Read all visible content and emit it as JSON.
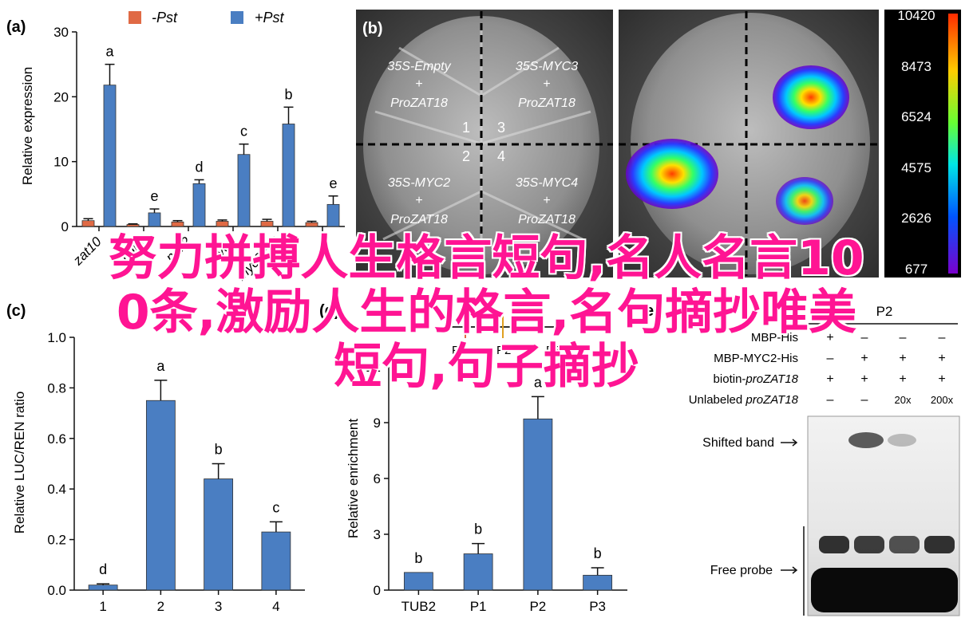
{
  "overlay_title": {
    "line1": "努力拼搏人生格言短句,名人名言10",
    "line2": "0条,激励人生的格言,名句摘抄唯美",
    "line3": "短句,句子摘抄"
  },
  "panels": {
    "a": "(a)",
    "b": "(b)",
    "c": "(c)",
    "d": "(d)",
    "e": "e"
  },
  "colors": {
    "neg": "#e06a45",
    "pos": "#4a7ec2",
    "bar": "#4a7ec2"
  },
  "chart_data": [
    {
      "id": "a",
      "type": "bar",
      "ylabel": "Relative expression",
      "ylim": [
        0,
        30
      ],
      "yticks": [
        "0",
        "10",
        "20",
        "30"
      ],
      "legend": [
        "-Pst",
        "+Pst"
      ],
      "categories": [
        "zat10",
        "zat11",
        "zat12",
        "myc3",
        "myc2",
        "myc4"
      ],
      "xtick_labels": [
        "zat10",
        "nail1",
        "nail2",
        "myc3",
        "myc2/5/4",
        ""
      ],
      "series": [
        {
          "name": "-Pst",
          "values": [
            0.9,
            0.3,
            0.7,
            0.8,
            0.8,
            0.6
          ],
          "errors": [
            0.3,
            0.1,
            0.2,
            0.2,
            0.3,
            0.2
          ]
        },
        {
          "name": "+Pst",
          "values": [
            21.8,
            2.1,
            6.6,
            11.1,
            15.8,
            3.4
          ],
          "errors": [
            3.2,
            0.6,
            0.6,
            1.6,
            2.6,
            1.3
          ]
        }
      ],
      "letters": [
        "a",
        "e",
        "d",
        "c",
        "b",
        "e"
      ]
    },
    {
      "id": "c",
      "type": "bar",
      "ylabel": "Relative LUC/REN ratio",
      "ylim": [
        0,
        1.0
      ],
      "yticks": [
        "0.0",
        "0.2",
        "0.4",
        "0.6",
        "0.8",
        "1.0"
      ],
      "categories": [
        "1",
        "2",
        "3",
        "4"
      ],
      "values": [
        0.02,
        0.75,
        0.44,
        0.23
      ],
      "errors": [
        0.005,
        0.08,
        0.06,
        0.04
      ],
      "letters": [
        "d",
        "a",
        "b",
        "c"
      ]
    },
    {
      "id": "d",
      "type": "bar",
      "ylabel": "Relative enrichment",
      "ylim": [
        0,
        12
      ],
      "yticks": [
        "0",
        "3",
        "6",
        "9",
        "12"
      ],
      "categories": [
        "TUB2",
        "P1",
        "P2",
        "P3"
      ],
      "values": [
        0.95,
        1.95,
        9.2,
        0.8
      ],
      "errors": [
        0,
        0.55,
        1.2,
        0.4
      ],
      "letters": [
        "b",
        "b",
        "a",
        "b"
      ],
      "promoter_labels": [
        "P1",
        "P2",
        "P3"
      ]
    }
  ],
  "leaf": {
    "quadrants": [
      {
        "num": "1",
        "construct": "35S-Empty",
        "plus": "+",
        "target": "ProZAT18"
      },
      {
        "num": "3",
        "construct": "35S-MYC3",
        "plus": "+",
        "target": "ProZAT18"
      },
      {
        "num": "2",
        "construct": "35S-MYC2",
        "plus": "+",
        "target": "ProZAT18"
      },
      {
        "num": "4",
        "construct": "35S-MYC4",
        "plus": "+",
        "target": "ProZAT18"
      }
    ],
    "colorbar_ticks": [
      "10420",
      "8473",
      "6524",
      "4575",
      "2626",
      "677"
    ]
  },
  "emsa": {
    "probe_header": "P2",
    "rows": [
      {
        "label": "MBP-His",
        "italic_part": "",
        "values": [
          "+",
          "–",
          "–",
          "–"
        ]
      },
      {
        "label": "MBP-MYC2-His",
        "italic_part": "",
        "values": [
          "–",
          "+",
          "+",
          "+"
        ]
      },
      {
        "label": "biotin-",
        "italic_part": "proZAT18",
        "values": [
          "+",
          "+",
          "+",
          "+"
        ]
      },
      {
        "label": "Unlabeled ",
        "italic_part": "proZAT18",
        "values": [
          "–",
          "–",
          "20x",
          "200x"
        ]
      }
    ],
    "shifted_band": "Shifted band",
    "free_probe": "Free probe"
  }
}
